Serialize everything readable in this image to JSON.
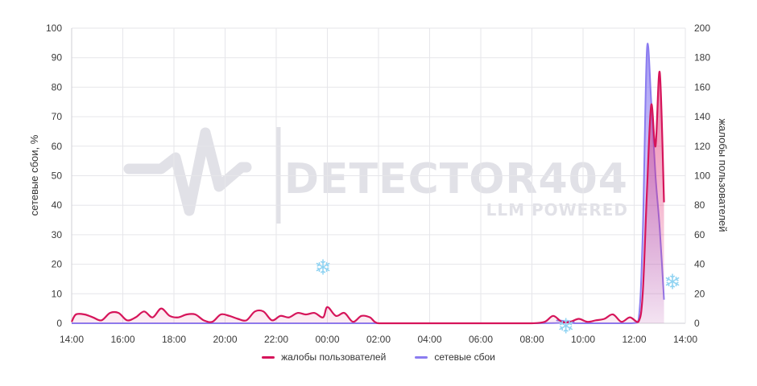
{
  "chart_data": {
    "type": "area",
    "watermark": {
      "title": "DETECTOR404",
      "subtitle": "LLM POWERED"
    },
    "left_axis": {
      "label": "сетевые сбои, %",
      "ylim": [
        0,
        100
      ],
      "ticks": [
        "0",
        "10",
        "20",
        "30",
        "40",
        "50",
        "60",
        "70",
        "80",
        "90",
        "100"
      ]
    },
    "right_axis": {
      "label": "жалобы пользователей",
      "ylim": [
        0,
        200
      ],
      "ticks": [
        "0",
        "20",
        "40",
        "60",
        "80",
        "100",
        "120",
        "140",
        "160",
        "180",
        "200"
      ]
    },
    "x_axis": {
      "range": [
        "14:00",
        "14:00 next day"
      ],
      "ticks": [
        "14:00",
        "16:00",
        "18:00",
        "20:00",
        "22:00",
        "00:00",
        "02:00",
        "04:00",
        "06:00",
        "08:00",
        "10:00",
        "12:00",
        "14:00"
      ]
    },
    "grid": true,
    "legend_position": "bottom",
    "series": [
      {
        "name": "жалобы пользователей",
        "axis": "right",
        "color": "#d6145a",
        "x": [
          "14:00",
          "14:10",
          "14:30",
          "14:50",
          "15:10",
          "15:30",
          "15:50",
          "16:10",
          "16:30",
          "16:50",
          "17:10",
          "17:30",
          "17:50",
          "18:10",
          "18:30",
          "18:50",
          "19:10",
          "19:30",
          "19:50",
          "20:10",
          "20:30",
          "20:50",
          "21:10",
          "21:30",
          "21:50",
          "22:10",
          "22:30",
          "22:50",
          "23:10",
          "23:30",
          "23:50",
          "00:00",
          "00:20",
          "00:40",
          "01:00",
          "01:20",
          "01:40",
          "02:00",
          "03:00",
          "04:00",
          "05:00",
          "06:00",
          "07:00",
          "08:00",
          "08:30",
          "08:50",
          "09:10",
          "09:30",
          "09:50",
          "10:10",
          "10:30",
          "10:50",
          "11:10",
          "11:30",
          "11:50",
          "12:10",
          "12:20",
          "12:30",
          "12:40",
          "12:50",
          "13:00",
          "13:10"
        ],
        "values": [
          1,
          6,
          6,
          4,
          2,
          7,
          7,
          2,
          4,
          8,
          4,
          10,
          5,
          4,
          6,
          6,
          2,
          1,
          6,
          5,
          3,
          2,
          8,
          8,
          2,
          5,
          4,
          7,
          6,
          7,
          4,
          11,
          5,
          7,
          1,
          5,
          4,
          0,
          0,
          0,
          0,
          0,
          0,
          0,
          1,
          5,
          1,
          1,
          3,
          1,
          2,
          3,
          6,
          1,
          4,
          1,
          20,
          90,
          148,
          120,
          170,
          82
        ],
        "values_unit": "complaints"
      },
      {
        "name": "сетевые сбои",
        "axis": "left",
        "color": "#8b7cf0",
        "x": [
          "14:00",
          "08:00",
          "09:00",
          "09:40",
          "10:00",
          "11:50",
          "12:10",
          "12:20",
          "12:30",
          "12:40",
          "12:50",
          "13:00",
          "13:10"
        ],
        "values": [
          0,
          0,
          1,
          0,
          0,
          0,
          1,
          30,
          93,
          75,
          50,
          32,
          8
        ],
        "values_unit": "%"
      }
    ],
    "annotations": [
      {
        "type": "snowflake",
        "at": "23:50",
        "value_left_pct": 19
      },
      {
        "type": "snowflake",
        "at": "09:20",
        "value_left_pct": -1
      },
      {
        "type": "snowflake",
        "at": "13:30",
        "value_left_pct": 14
      }
    ]
  },
  "icons": {
    "snowflake": "snowflake-icon",
    "watermark_logo": "pulse-logo-icon"
  }
}
